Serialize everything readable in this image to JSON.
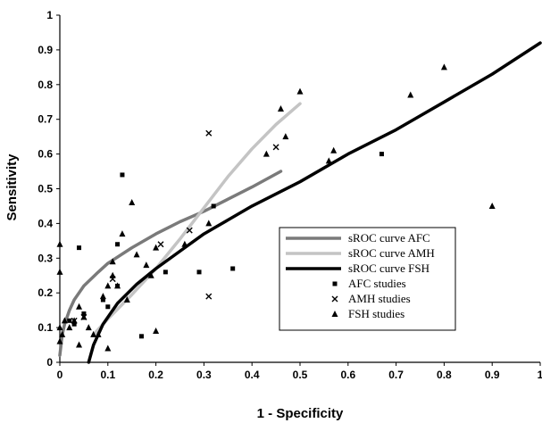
{
  "chart_data": {
    "type": "scatter",
    "title": "",
    "xlabel": "1 - Specificity",
    "ylabel": "Sensitivity",
    "xlim": [
      0,
      1
    ],
    "ylim": [
      0,
      1
    ],
    "x_ticks": [
      "0",
      "0.1",
      "0.2",
      "0.3",
      "0.4",
      "0.5",
      "0.6",
      "0.7",
      "0.8",
      "0.9",
      "1"
    ],
    "y_ticks": [
      "0",
      "0.1",
      "0.2",
      "0.3",
      "0.4",
      "0.5",
      "0.6",
      "0.7",
      "0.8",
      "0.9",
      "1"
    ],
    "grid": false,
    "legend_position": "lower-right",
    "curves": [
      {
        "name": "sROC curve AFC",
        "color": "#7a7a7a",
        "x": [
          0.0,
          0.005,
          0.01,
          0.02,
          0.03,
          0.05,
          0.08,
          0.1,
          0.15,
          0.2,
          0.25,
          0.3,
          0.35,
          0.4,
          0.46
        ],
        "y": [
          0.02,
          0.08,
          0.11,
          0.15,
          0.18,
          0.22,
          0.26,
          0.285,
          0.33,
          0.37,
          0.405,
          0.435,
          0.47,
          0.505,
          0.55
        ]
      },
      {
        "name": "sROC curve AMH",
        "color": "#c4c4c4",
        "x": [
          0.07,
          0.1,
          0.15,
          0.2,
          0.25,
          0.3,
          0.35,
          0.4,
          0.45,
          0.5
        ],
        "y": [
          0.08,
          0.125,
          0.195,
          0.27,
          0.355,
          0.445,
          0.535,
          0.615,
          0.685,
          0.745
        ]
      },
      {
        "name": "sROC curve FSH",
        "color": "#000000",
        "x": [
          0.06,
          0.07,
          0.09,
          0.12,
          0.16,
          0.2,
          0.25,
          0.3,
          0.35,
          0.4,
          0.5,
          0.6,
          0.7,
          0.8,
          0.9,
          1.0
        ],
        "y": [
          0.0,
          0.05,
          0.11,
          0.17,
          0.225,
          0.27,
          0.32,
          0.37,
          0.41,
          0.45,
          0.52,
          0.6,
          0.67,
          0.75,
          0.83,
          0.92
        ]
      }
    ],
    "point_series": [
      {
        "name": "AFC studies",
        "marker": "square",
        "x": [
          0.02,
          0.04,
          0.12,
          0.13,
          0.17,
          0.22,
          0.29,
          0.32,
          0.36,
          0.67,
          0.03,
          0.05,
          0.09,
          0.1,
          0.12
        ],
        "y": [
          0.12,
          0.33,
          0.34,
          0.54,
          0.075,
          0.26,
          0.26,
          0.45,
          0.27,
          0.6,
          0.11,
          0.14,
          0.18,
          0.16,
          0.22
        ]
      },
      {
        "name": "AMH studies",
        "marker": "x",
        "x": [
          0.31,
          0.31,
          0.45,
          0.27,
          0.21,
          0.03,
          0.05,
          0.11
        ],
        "y": [
          0.66,
          0.19,
          0.62,
          0.38,
          0.34,
          0.12,
          0.13,
          0.24
        ]
      },
      {
        "name": "FSH studies",
        "marker": "triangle",
        "x": [
          0.0,
          0.0,
          0.0,
          0.0,
          0.005,
          0.01,
          0.02,
          0.03,
          0.04,
          0.04,
          0.05,
          0.06,
          0.07,
          0.08,
          0.09,
          0.1,
          0.1,
          0.11,
          0.11,
          0.12,
          0.13,
          0.14,
          0.15,
          0.16,
          0.18,
          0.19,
          0.2,
          0.2,
          0.26,
          0.31,
          0.43,
          0.46,
          0.47,
          0.5,
          0.56,
          0.57,
          0.73,
          0.8,
          0.9
        ],
        "y": [
          0.34,
          0.26,
          0.1,
          0.06,
          0.08,
          0.12,
          0.1,
          0.12,
          0.05,
          0.16,
          0.13,
          0.1,
          0.08,
          0.08,
          0.19,
          0.04,
          0.22,
          0.29,
          0.25,
          0.22,
          0.37,
          0.18,
          0.46,
          0.31,
          0.28,
          0.25,
          0.33,
          0.09,
          0.34,
          0.4,
          0.6,
          0.73,
          0.65,
          0.78,
          0.58,
          0.61,
          0.77,
          0.85,
          0.45
        ]
      }
    ]
  }
}
